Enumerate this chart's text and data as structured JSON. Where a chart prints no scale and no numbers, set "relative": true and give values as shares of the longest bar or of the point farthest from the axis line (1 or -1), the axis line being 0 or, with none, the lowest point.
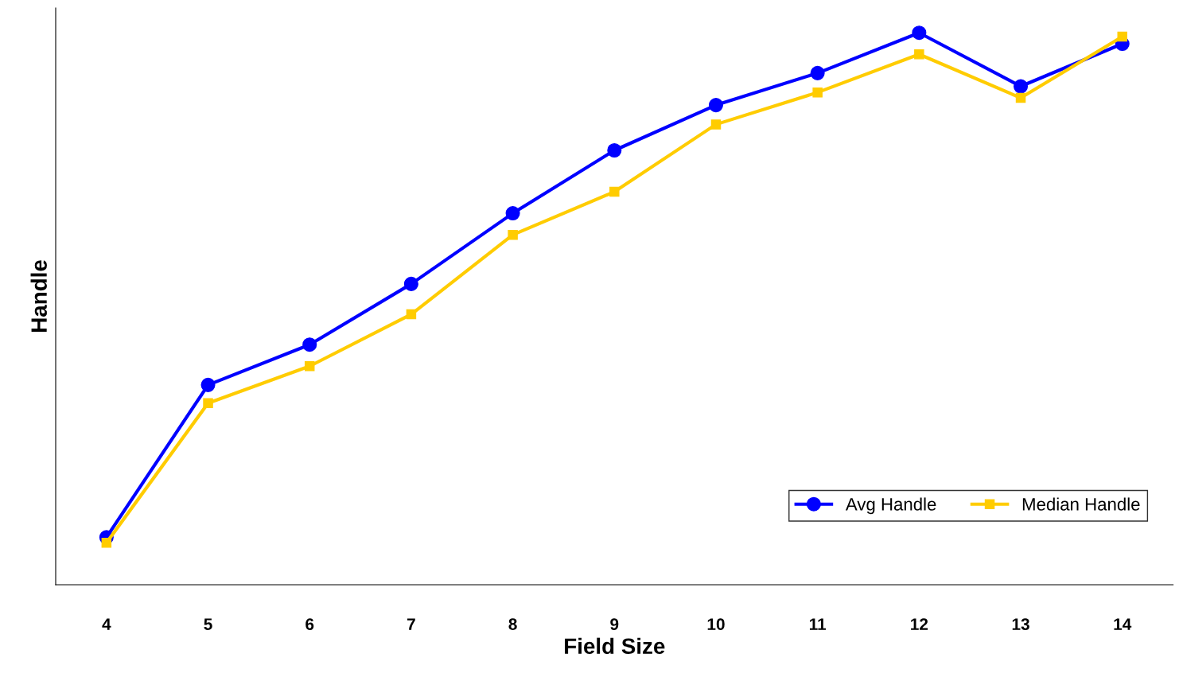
{
  "chart_data": {
    "type": "line",
    "relative": true,
    "xlabel": "Field Size",
    "ylabel": "Handle",
    "categories": [
      "4",
      "5",
      "6",
      "7",
      "8",
      "9",
      "10",
      "11",
      "12",
      "13",
      "14"
    ],
    "series": [
      {
        "name": "Avg Handle",
        "color": "#0000ff",
        "marker": "circle",
        "values": [
          0.086,
          0.362,
          0.435,
          0.545,
          0.673,
          0.787,
          0.869,
          0.927,
          1.0,
          0.903,
          0.98
        ]
      },
      {
        "name": "Median Handle",
        "color": "#ffcc00",
        "marker": "square",
        "values": [
          0.076,
          0.329,
          0.396,
          0.49,
          0.634,
          0.712,
          0.834,
          0.892,
          0.961,
          0.882,
          0.993
        ]
      }
    ],
    "grid": false,
    "legend": "bottom right",
    "line_style": "solid"
  }
}
